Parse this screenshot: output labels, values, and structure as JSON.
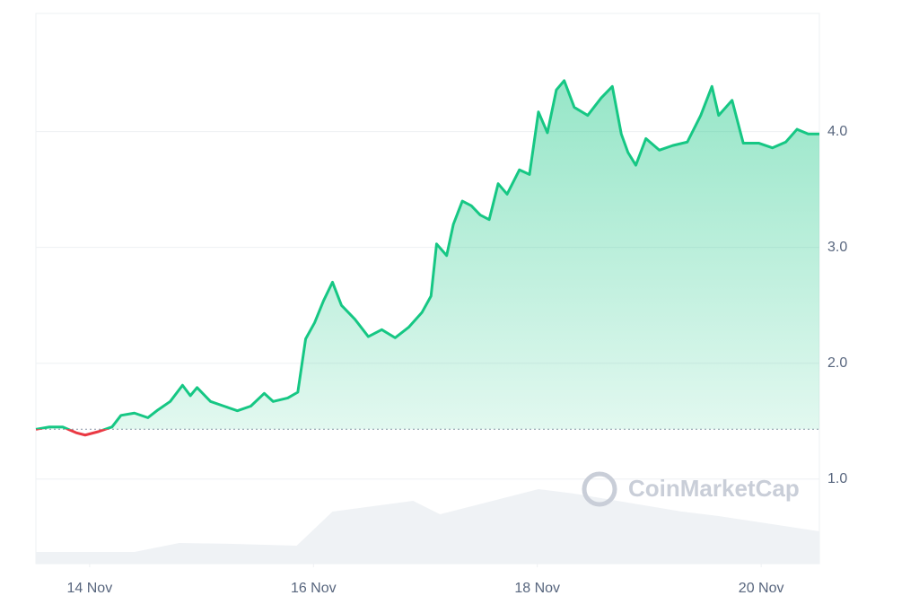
{
  "chart_data": {
    "type": "line",
    "watermark": "CoinMarketCap",
    "x": [
      13.52,
      13.64,
      13.76,
      13.88,
      13.96,
      14.08,
      14.2,
      14.28,
      14.4,
      14.52,
      14.6,
      14.72,
      14.83,
      14.9,
      14.96,
      15.08,
      15.2,
      15.32,
      15.44,
      15.56,
      15.64,
      15.77,
      15.86,
      15.93,
      16.01,
      16.09,
      16.17,
      16.25,
      16.37,
      16.49,
      16.61,
      16.73,
      16.85,
      16.97,
      17.05,
      17.1,
      17.19,
      17.25,
      17.33,
      17.41,
      17.49,
      17.57,
      17.65,
      17.73,
      17.84,
      17.93,
      18.01,
      18.09,
      18.17,
      18.24,
      18.33,
      18.45,
      18.57,
      18.67,
      18.75,
      18.81,
      18.88,
      18.97,
      19.09,
      19.21,
      19.34,
      19.46,
      19.56,
      19.62,
      19.74,
      19.84,
      19.98,
      20.1,
      20.22,
      20.32,
      20.42,
      20.52
    ],
    "series": [
      {
        "color": "#16c784",
        "below_color": "#ea3943",
        "values": [
          1.43,
          1.45,
          1.45,
          1.4,
          1.38,
          1.41,
          1.45,
          1.55,
          1.57,
          1.53,
          1.59,
          1.67,
          1.81,
          1.72,
          1.79,
          1.67,
          1.63,
          1.59,
          1.63,
          1.74,
          1.67,
          1.7,
          1.75,
          2.21,
          2.35,
          2.54,
          2.7,
          2.5,
          2.38,
          2.23,
          2.29,
          2.22,
          2.31,
          2.44,
          2.58,
          3.03,
          2.93,
          3.2,
          3.4,
          3.36,
          3.28,
          3.24,
          3.55,
          3.46,
          3.67,
          3.63,
          4.17,
          3.99,
          4.36,
          4.44,
          4.21,
          4.14,
          4.29,
          4.39,
          3.98,
          3.82,
          3.71,
          3.94,
          3.84,
          3.88,
          3.91,
          4.14,
          4.39,
          4.14,
          4.27,
          3.9,
          3.9,
          3.86,
          3.91,
          4.02,
          3.98,
          3.98
        ]
      }
    ],
    "baseline": 1.43,
    "volume": {
      "color": "#eff2f5",
      "x": [
        13.52,
        14.4,
        14.8,
        15.28,
        15.85,
        16.17,
        16.89,
        17.13,
        18.01,
        18.33,
        19.29,
        19.62,
        20.52
      ],
      "values": [
        13,
        13,
        23,
        22,
        20,
        58,
        70,
        55,
        83,
        78,
        58,
        53,
        36
      ],
      "lim": [
        0,
        100
      ]
    },
    "xlim": [
      13.52,
      20.52
    ],
    "xticks": [
      {
        "value": 14,
        "label": "14 Nov"
      },
      {
        "value": 16,
        "label": "16 Nov"
      },
      {
        "value": 18,
        "label": "18 Nov"
      },
      {
        "value": 20,
        "label": "20 Nov"
      }
    ],
    "ylim": [
      0.27,
      5.02
    ],
    "yticks": [
      {
        "value": 1,
        "label": "1.0"
      },
      {
        "value": 2,
        "label": "2.0"
      },
      {
        "value": 3,
        "label": "3.0"
      },
      {
        "value": 4,
        "label": "4.0"
      }
    ],
    "grid": true
  }
}
